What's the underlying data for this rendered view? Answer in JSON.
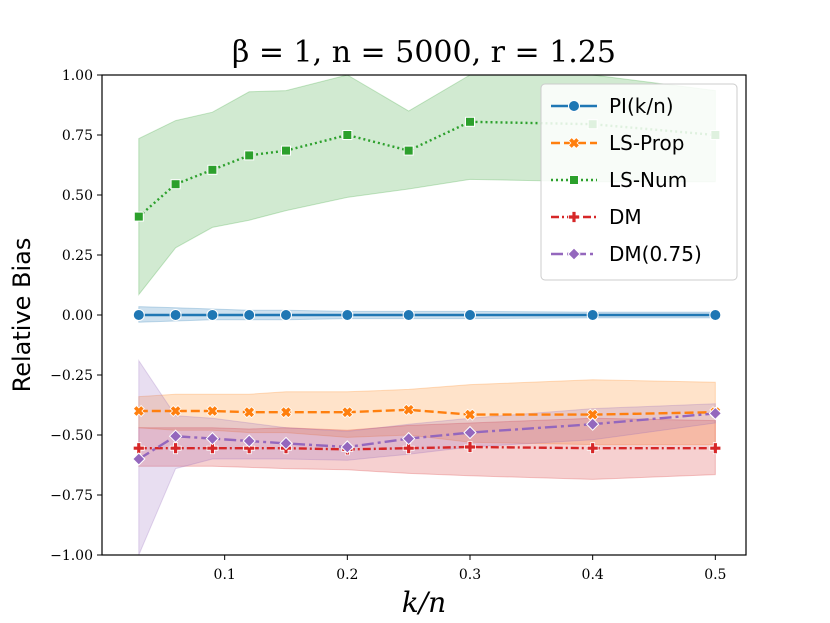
{
  "chart_data": {
    "type": "line",
    "title": "β = 1, n = 5000, r = 1.25",
    "xlabel": "k/n",
    "ylabel": "Relative Bias",
    "xlim": [
      0.0,
      0.525
    ],
    "ylim": [
      -1.0,
      1.0
    ],
    "xticks": [
      0.1,
      0.2,
      0.3,
      0.4,
      0.5
    ],
    "xtick_labels": [
      "0.1",
      "0.2",
      "0.3",
      "0.4",
      "0.5"
    ],
    "yticks": [
      -1.0,
      -0.75,
      -0.5,
      -0.25,
      0.0,
      0.25,
      0.5,
      0.75,
      1.0
    ],
    "ytick_labels": [
      "−1.00",
      "−0.75",
      "−0.50",
      "−0.25",
      "0.00",
      "0.25",
      "0.50",
      "0.75",
      "1.00"
    ],
    "grid": false,
    "legend_position": "top-right",
    "x": [
      0.03,
      0.06,
      0.09,
      0.12,
      0.15,
      0.2,
      0.25,
      0.3,
      0.4,
      0.5
    ],
    "series": [
      {
        "name": "PI(k/n)",
        "color": "#1f77b4",
        "dash": "solid",
        "marker": "circle",
        "values": [
          0.0,
          0.0,
          0.0,
          0.0,
          0.0,
          0.0,
          0.0,
          0.0,
          0.0,
          0.0
        ],
        "band_low": [
          -0.03,
          -0.025,
          -0.02,
          -0.02,
          -0.02,
          -0.015,
          -0.015,
          -0.015,
          -0.012,
          -0.012
        ],
        "band_high": [
          0.035,
          0.03,
          0.025,
          0.02,
          0.02,
          0.015,
          0.015,
          0.015,
          0.012,
          0.012
        ]
      },
      {
        "name": "LS-Prop",
        "color": "#ff7f0e",
        "dash": "dashed",
        "marker": "x",
        "values": [
          -0.4,
          -0.4,
          -0.4,
          -0.405,
          -0.405,
          -0.405,
          -0.395,
          -0.415,
          -0.415,
          -0.405
        ],
        "band_low": [
          -0.47,
          -0.48,
          -0.48,
          -0.49,
          -0.49,
          -0.51,
          -0.5,
          -0.53,
          -0.54,
          -0.54
        ],
        "band_high": [
          -0.34,
          -0.33,
          -0.33,
          -0.33,
          -0.32,
          -0.32,
          -0.31,
          -0.29,
          -0.27,
          -0.28
        ]
      },
      {
        "name": "LS-Num",
        "color": "#2ca02c",
        "dash": "dotted",
        "marker": "square",
        "values": [
          0.41,
          0.545,
          0.605,
          0.665,
          0.685,
          0.75,
          0.685,
          0.805,
          0.795,
          0.75
        ],
        "band_low": [
          0.085,
          0.28,
          0.365,
          0.395,
          0.435,
          0.49,
          0.525,
          0.565,
          0.555,
          0.555
        ],
        "band_high": [
          0.735,
          0.81,
          0.845,
          0.93,
          0.935,
          1.0,
          0.85,
          1.0,
          1.0,
          0.935
        ]
      },
      {
        "name": "DM",
        "color": "#d62728",
        "dash": "dashdot",
        "marker": "plus",
        "values": [
          -0.555,
          -0.555,
          -0.555,
          -0.555,
          -0.555,
          -0.56,
          -0.555,
          -0.55,
          -0.555,
          -0.555
        ],
        "band_low": [
          -0.63,
          -0.63,
          -0.63,
          -0.635,
          -0.64,
          -0.645,
          -0.66,
          -0.67,
          -0.685,
          -0.665
        ],
        "band_high": [
          -0.47,
          -0.47,
          -0.47,
          -0.475,
          -0.47,
          -0.48,
          -0.46,
          -0.45,
          -0.43,
          -0.44
        ]
      },
      {
        "name": "DM(0.75)",
        "color": "#9467bd",
        "dash": "dashdotlong",
        "marker": "diamond",
        "values": [
          -0.6,
          -0.505,
          -0.515,
          -0.525,
          -0.535,
          -0.55,
          -0.515,
          -0.49,
          -0.455,
          -0.41
        ],
        "band_low": [
          -1.0,
          -0.64,
          -0.6,
          -0.6,
          -0.6,
          -0.605,
          -0.58,
          -0.55,
          -0.52,
          -0.45
        ],
        "band_high": [
          -0.19,
          -0.42,
          -0.43,
          -0.45,
          -0.47,
          -0.485,
          -0.455,
          -0.43,
          -0.39,
          -0.37
        ]
      }
    ]
  }
}
